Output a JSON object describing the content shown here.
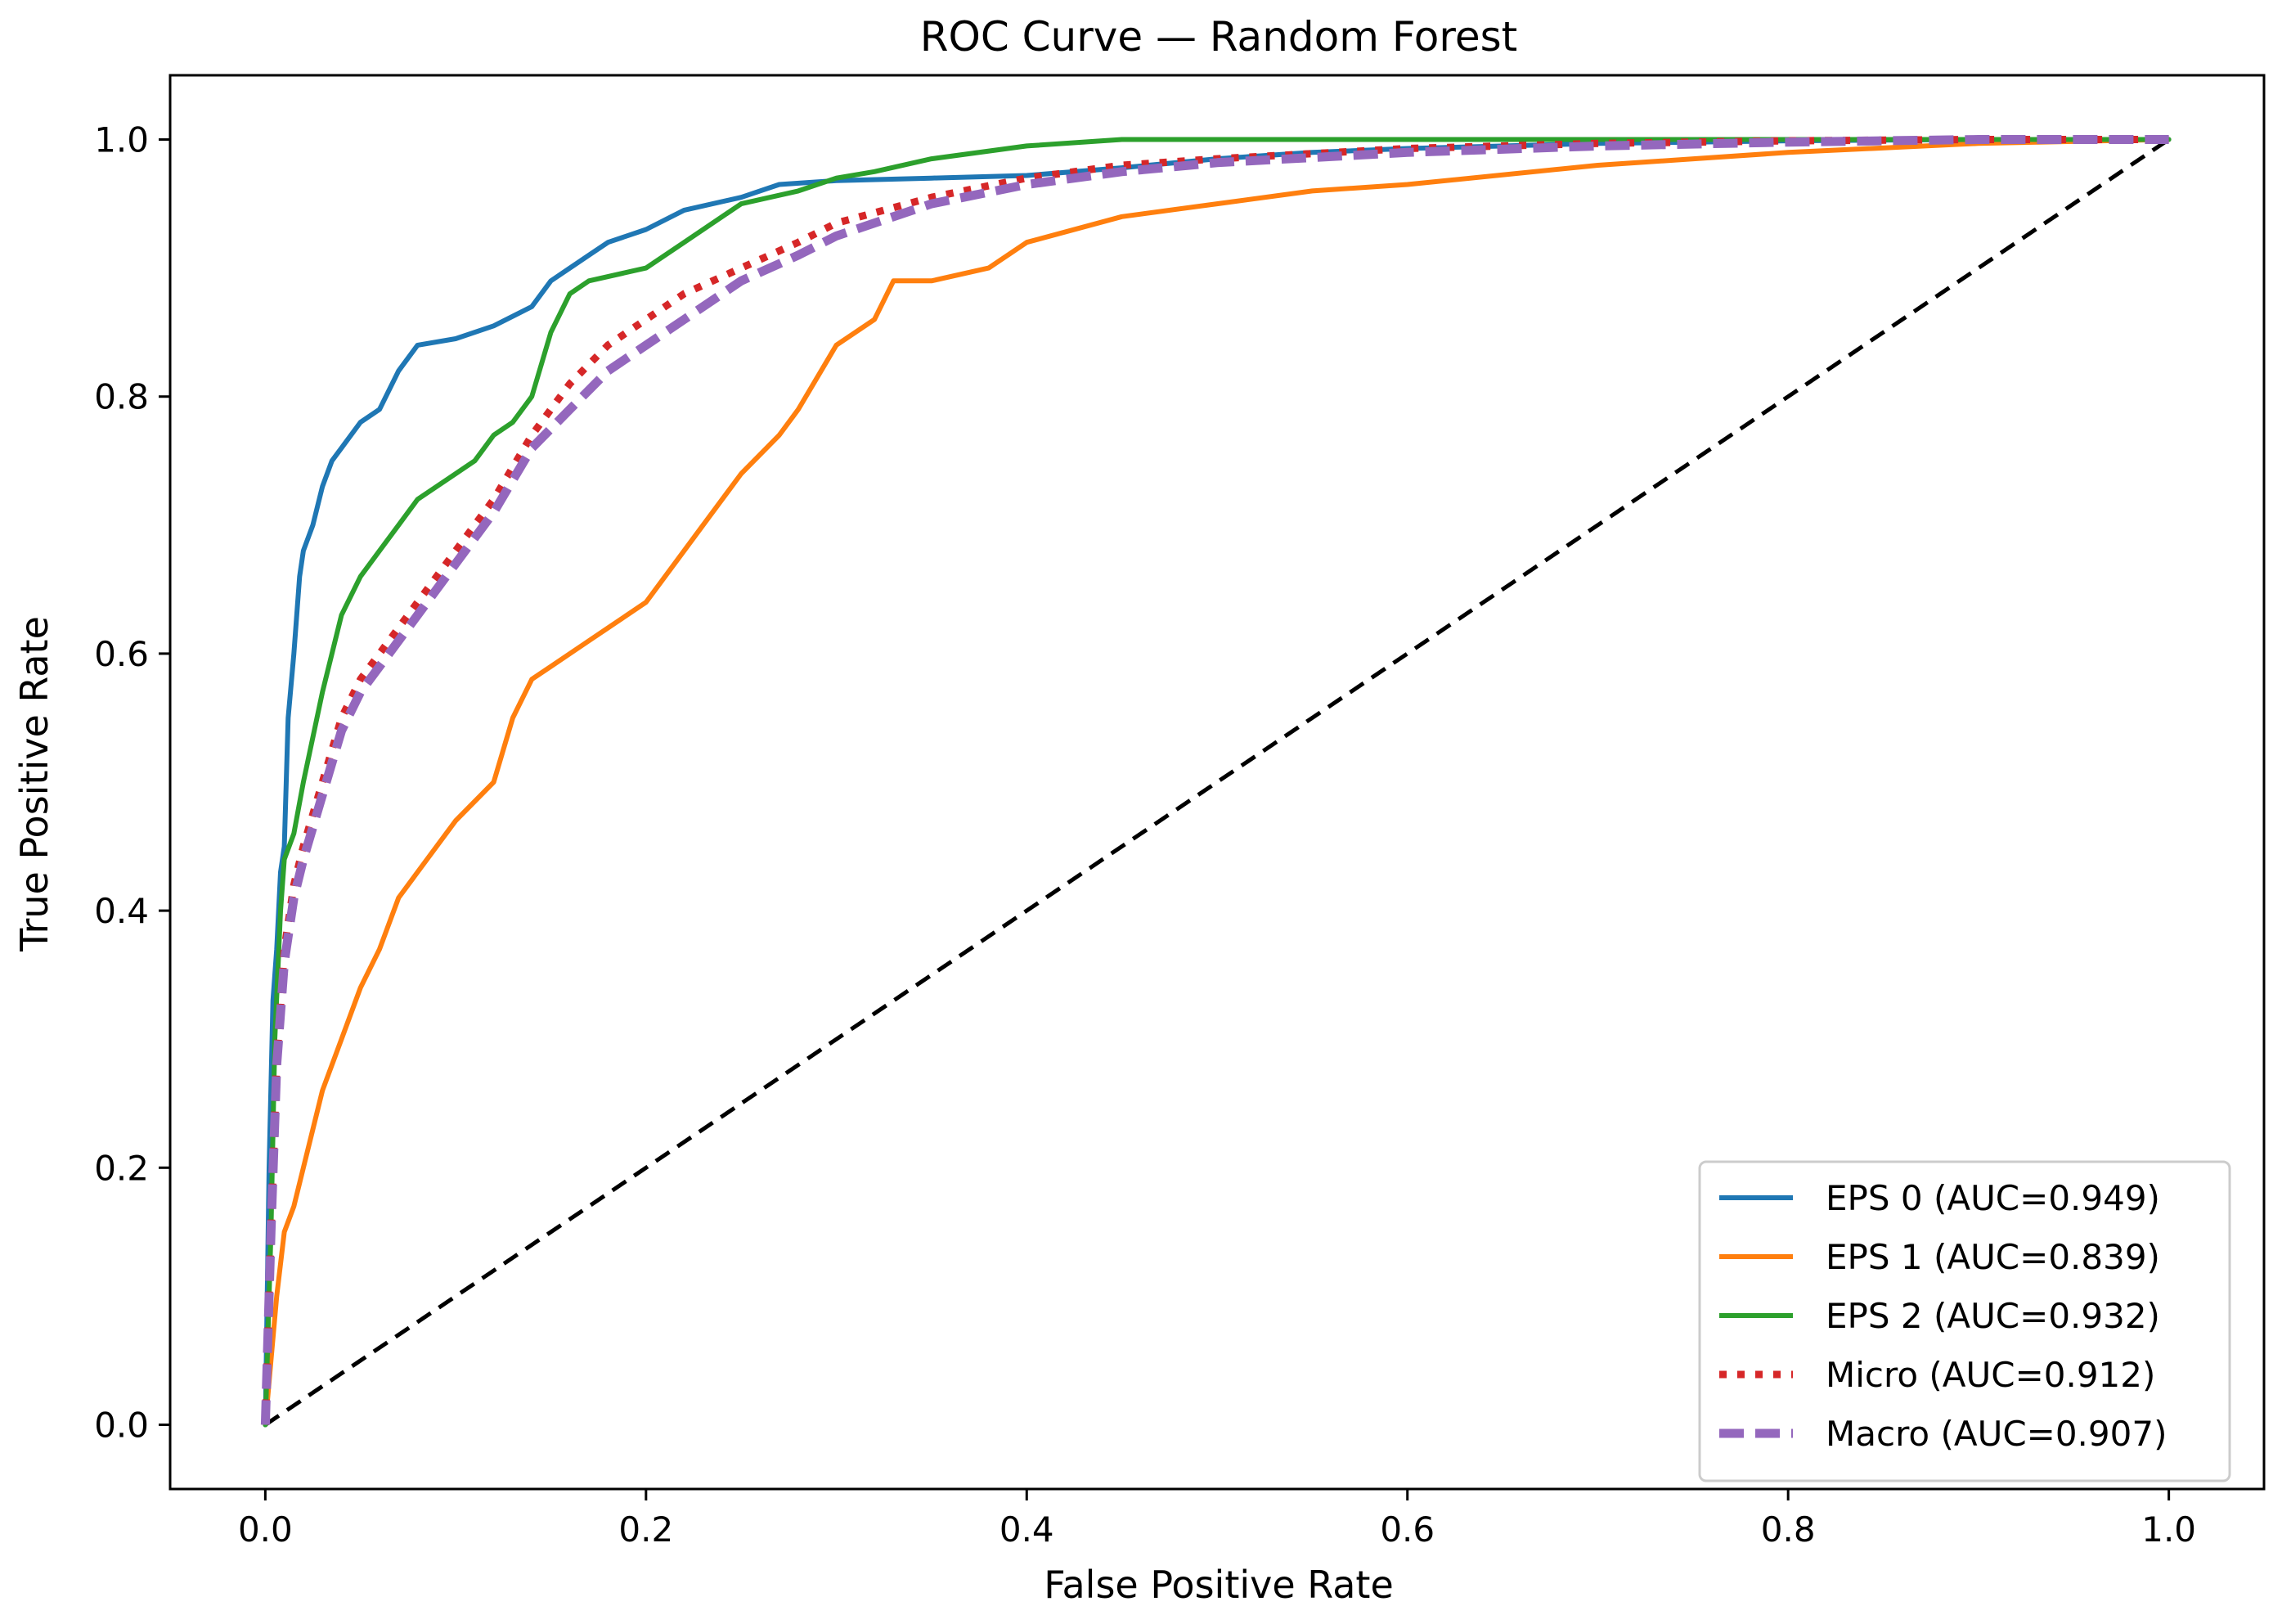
{
  "chart_data": {
    "type": "line",
    "title": "ROC Curve — Random Forest",
    "xlabel": "False Positive Rate",
    "ylabel": "True Positive Rate",
    "xlim": [
      -0.05,
      1.05
    ],
    "ylim": [
      -0.05,
      1.05
    ],
    "xticks": [
      "0.0",
      "0.2",
      "0.4",
      "0.6",
      "0.8",
      "1.0"
    ],
    "yticks": [
      "0.0",
      "0.2",
      "0.4",
      "0.6",
      "0.8",
      "1.0"
    ],
    "grid": false,
    "legend_position": "lower-right",
    "series": [
      {
        "name": "EPS 0 (AUC=0.949)",
        "color": "#1f77b4",
        "style": "solid",
        "x": [
          0,
          0.002,
          0.004,
          0.006,
          0.008,
          0.01,
          0.012,
          0.015,
          0.018,
          0.02,
          0.025,
          0.03,
          0.035,
          0.04,
          0.05,
          0.06,
          0.07,
          0.08,
          0.1,
          0.12,
          0.14,
          0.15,
          0.16,
          0.17,
          0.18,
          0.2,
          0.22,
          0.25,
          0.27,
          0.3,
          0.35,
          0.4,
          0.45,
          0.5,
          0.55,
          0.6,
          0.7,
          0.8,
          0.9,
          1.0
        ],
        "y": [
          0,
          0.2,
          0.33,
          0.37,
          0.43,
          0.45,
          0.55,
          0.6,
          0.66,
          0.68,
          0.7,
          0.73,
          0.75,
          0.76,
          0.78,
          0.79,
          0.82,
          0.84,
          0.845,
          0.855,
          0.87,
          0.89,
          0.9,
          0.91,
          0.92,
          0.93,
          0.945,
          0.955,
          0.965,
          0.968,
          0.97,
          0.972,
          0.978,
          0.985,
          0.99,
          0.993,
          0.997,
          0.999,
          1.0,
          1.0
        ]
      },
      {
        "name": "EPS 1 (AUC=0.839)",
        "color": "#ff7f0e",
        "style": "solid",
        "x": [
          0,
          0.003,
          0.006,
          0.01,
          0.015,
          0.02,
          0.03,
          0.04,
          0.05,
          0.06,
          0.07,
          0.08,
          0.1,
          0.12,
          0.13,
          0.14,
          0.15,
          0.17,
          0.18,
          0.2,
          0.22,
          0.23,
          0.25,
          0.27,
          0.28,
          0.3,
          0.32,
          0.33,
          0.35,
          0.38,
          0.4,
          0.45,
          0.5,
          0.55,
          0.6,
          0.7,
          0.8,
          0.9,
          1.0
        ],
        "y": [
          0,
          0.05,
          0.1,
          0.15,
          0.17,
          0.2,
          0.26,
          0.3,
          0.34,
          0.37,
          0.41,
          0.43,
          0.47,
          0.5,
          0.55,
          0.58,
          0.59,
          0.61,
          0.62,
          0.64,
          0.68,
          0.7,
          0.74,
          0.77,
          0.79,
          0.84,
          0.86,
          0.89,
          0.89,
          0.9,
          0.92,
          0.94,
          0.95,
          0.96,
          0.965,
          0.98,
          0.99,
          0.997,
          1.0
        ]
      },
      {
        "name": "EPS 2 (AUC=0.932)",
        "color": "#2ca02c",
        "style": "solid",
        "x": [
          0,
          0.003,
          0.005,
          0.008,
          0.01,
          0.015,
          0.02,
          0.03,
          0.04,
          0.05,
          0.06,
          0.07,
          0.08,
          0.1,
          0.11,
          0.12,
          0.13,
          0.14,
          0.15,
          0.16,
          0.17,
          0.2,
          0.22,
          0.25,
          0.28,
          0.3,
          0.32,
          0.35,
          0.4,
          0.45,
          0.5,
          0.6,
          0.7,
          0.8,
          0.9,
          1.0
        ],
        "y": [
          0,
          0.15,
          0.3,
          0.4,
          0.44,
          0.46,
          0.5,
          0.57,
          0.63,
          0.66,
          0.68,
          0.7,
          0.72,
          0.74,
          0.75,
          0.77,
          0.78,
          0.8,
          0.85,
          0.88,
          0.89,
          0.9,
          0.92,
          0.95,
          0.96,
          0.97,
          0.975,
          0.985,
          0.995,
          1.0,
          1.0,
          1.0,
          1.0,
          1.0,
          1.0,
          1.0
        ]
      },
      {
        "name": "Micro (AUC=0.912)",
        "color": "#d62728",
        "style": "dotted",
        "x": [
          0,
          0.003,
          0.006,
          0.01,
          0.015,
          0.02,
          0.03,
          0.04,
          0.05,
          0.07,
          0.09,
          0.1,
          0.12,
          0.14,
          0.16,
          0.18,
          0.2,
          0.22,
          0.25,
          0.28,
          0.3,
          0.35,
          0.4,
          0.45,
          0.5,
          0.6,
          0.7,
          0.8,
          0.9,
          1.0
        ],
        "y": [
          0,
          0.15,
          0.28,
          0.37,
          0.42,
          0.45,
          0.5,
          0.55,
          0.58,
          0.62,
          0.66,
          0.68,
          0.72,
          0.77,
          0.81,
          0.84,
          0.86,
          0.88,
          0.9,
          0.92,
          0.935,
          0.955,
          0.97,
          0.98,
          0.985,
          0.993,
          0.997,
          0.999,
          1.0,
          1.0
        ]
      },
      {
        "name": "Macro (AUC=0.907)",
        "color": "#9467bd",
        "style": "dashed",
        "x": [
          0,
          0.003,
          0.006,
          0.01,
          0.015,
          0.02,
          0.03,
          0.04,
          0.05,
          0.07,
          0.09,
          0.1,
          0.12,
          0.14,
          0.16,
          0.18,
          0.2,
          0.22,
          0.25,
          0.28,
          0.3,
          0.35,
          0.4,
          0.45,
          0.5,
          0.6,
          0.7,
          0.8,
          0.9,
          1.0
        ],
        "y": [
          0,
          0.15,
          0.28,
          0.36,
          0.41,
          0.44,
          0.49,
          0.54,
          0.57,
          0.61,
          0.65,
          0.67,
          0.71,
          0.76,
          0.79,
          0.82,
          0.84,
          0.86,
          0.89,
          0.91,
          0.925,
          0.95,
          0.965,
          0.975,
          0.982,
          0.99,
          0.995,
          0.998,
          1.0,
          1.0
        ]
      },
      {
        "name": "",
        "color": "#000000",
        "style": "diagonal",
        "x": [
          0,
          1
        ],
        "y": [
          0,
          1
        ]
      }
    ]
  }
}
